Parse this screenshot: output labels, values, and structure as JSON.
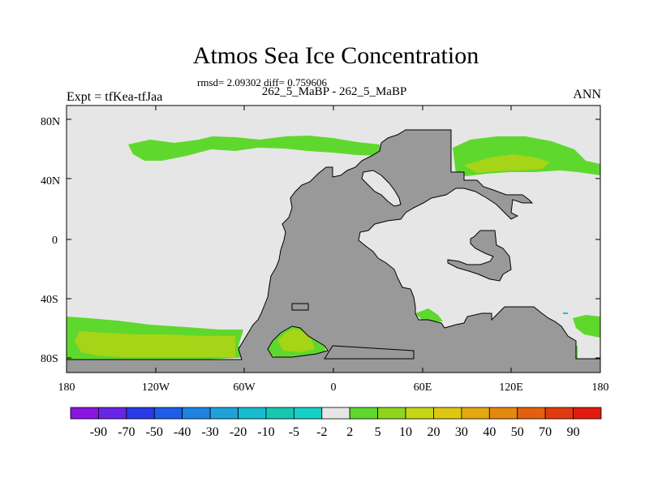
{
  "title": "Atmos Sea Ice Concentration",
  "stats": "rmsd= 2.09302 diff= 0.759606",
  "subtitle": "262_5_MaBP - 262_5_MaBP",
  "left_label": "Expt = tfKea-tfJaa",
  "right_label": "ANN",
  "y_ticks": [
    "80N",
    "40N",
    "0",
    "40S",
    "80S"
  ],
  "x_ticks": [
    "180",
    "120W",
    "60W",
    "0",
    "60E",
    "120E",
    "180"
  ],
  "colors": {
    "ocean_background": "#e6e6e6",
    "land": "#999999",
    "green_5": "#5fd82e",
    "yellowgreen_10": "#a6d416",
    "cyan_minus5": "#16c8b0"
  },
  "colorbar": {
    "labels": [
      "-90",
      "-70",
      "-50",
      "-40",
      "-30",
      "-20",
      "-10",
      "-5",
      "-2",
      "2",
      "5",
      "10",
      "20",
      "30",
      "40",
      "50",
      "70",
      "90"
    ],
    "colors": [
      "#8a14e0",
      "#6a24e6",
      "#2a3ae6",
      "#1c5ee8",
      "#1e82e2",
      "#1ea2d8",
      "#18bcd0",
      "#16c8b0",
      "#16d0c8",
      "#e6e6e6",
      "#5fd82e",
      "#8ed61e",
      "#c4d818",
      "#dcc810",
      "#e4a810",
      "#e48810",
      "#e46010",
      "#e03a10",
      "#e01c10"
    ]
  }
}
